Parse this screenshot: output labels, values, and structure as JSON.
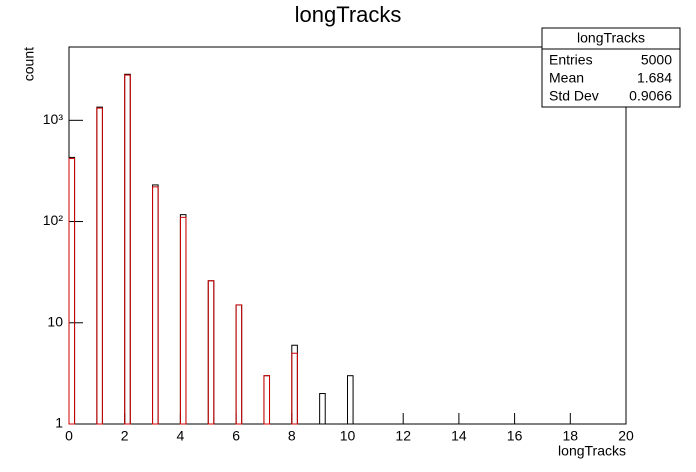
{
  "chart_data": {
    "type": "histogram",
    "title": "longTracks",
    "x_label": "longTracks",
    "y_label": "count",
    "bins": [
      0,
      0.2,
      0.4,
      0.6,
      0.8,
      1,
      1.2,
      1.4,
      1.6,
      1.8,
      2,
      2.2,
      2.4,
      2.6,
      2.8,
      3,
      3.2,
      3.4,
      3.6,
      3.8,
      4,
      4.2,
      4.4,
      4.6,
      4.8,
      5,
      5.2,
      5.4,
      5.6,
      5.8,
      6,
      6.2,
      6.4,
      6.6,
      6.8,
      7,
      7.2,
      7.4,
      7.6,
      7.8,
      8,
      8.2,
      8.4,
      8.6,
      8.8,
      9,
      9.2,
      9.4,
      9.6,
      9.8,
      10,
      10.2,
      10.4,
      10.6,
      10.8,
      11,
      11.2,
      11.4,
      11.6,
      11.8,
      12,
      12.2,
      12.4,
      12.6,
      12.8,
      13,
      13.2,
      13.4,
      13.6,
      13.8,
      14,
      14.2,
      14.4,
      14.6,
      14.8,
      15,
      15.2,
      15.4,
      15.6,
      15.8,
      16,
      16.2,
      16.4,
      16.6,
      16.8,
      17,
      17.2,
      17.4,
      17.6,
      17.8,
      18,
      18.2,
      18.4,
      18.6,
      18.8,
      19,
      19.2,
      19.4,
      19.6,
      19.8,
      20
    ],
    "series": [
      {
        "color": "#000000",
        "values": [
          430,
          0,
          0,
          0,
          0,
          1350,
          0,
          0,
          0,
          0,
          2850,
          0,
          0,
          0,
          0,
          230,
          0,
          0,
          0,
          0,
          117,
          0,
          0,
          0,
          0,
          26,
          0,
          0,
          0,
          0,
          15,
          0,
          0,
          0,
          0,
          3,
          0,
          0,
          0,
          0,
          6,
          0,
          0,
          0,
          0,
          2,
          0,
          0,
          0,
          0,
          3,
          0,
          0,
          0,
          0,
          0,
          0,
          0,
          0,
          0,
          0,
          0,
          0,
          0,
          0,
          0,
          0,
          0,
          0,
          0,
          0,
          0,
          0,
          0,
          0,
          0,
          0,
          0,
          0,
          0,
          0,
          0,
          0,
          0,
          0,
          0,
          0,
          0,
          0,
          0,
          0,
          0,
          0,
          0,
          0,
          0,
          0,
          0,
          0,
          0
        ]
      },
      {
        "color": "#d00000",
        "values": [
          420,
          0,
          0,
          0,
          0,
          1320,
          0,
          0,
          0,
          0,
          2800,
          0,
          0,
          0,
          0,
          220,
          0,
          0,
          0,
          0,
          110,
          0,
          0,
          0,
          0,
          26,
          0,
          0,
          0,
          0,
          15,
          0,
          0,
          0,
          0,
          3,
          0,
          0,
          0,
          0,
          5,
          0,
          0,
          0,
          0,
          0,
          0,
          0,
          0,
          0,
          0,
          0,
          0,
          0,
          0,
          0,
          0,
          0,
          0,
          0,
          0,
          0,
          0,
          0,
          0,
          0,
          0,
          0,
          0,
          0,
          0,
          0,
          0,
          0,
          0,
          0,
          0,
          0,
          0,
          0,
          0,
          0,
          0,
          0,
          0,
          0,
          0,
          0,
          0,
          0,
          0,
          0,
          0,
          0,
          0,
          0,
          0,
          0,
          0,
          0
        ]
      }
    ],
    "xlim": [
      0,
      20
    ],
    "xticks": [
      0,
      2,
      4,
      6,
      8,
      10,
      12,
      14,
      16,
      18,
      20
    ],
    "ylim": [
      1,
      5300
    ],
    "log_y": true,
    "yticks": [
      1,
      10,
      {
        "value": 100,
        "label": "10²"
      },
      {
        "value": 1000,
        "label": "10³"
      }
    ],
    "stats": {
      "title": "longTracks",
      "rows": [
        [
          "Entries",
          "5000"
        ],
        [
          "Mean",
          "1.684"
        ],
        [
          "Std Dev",
          "0.9066"
        ]
      ]
    }
  }
}
